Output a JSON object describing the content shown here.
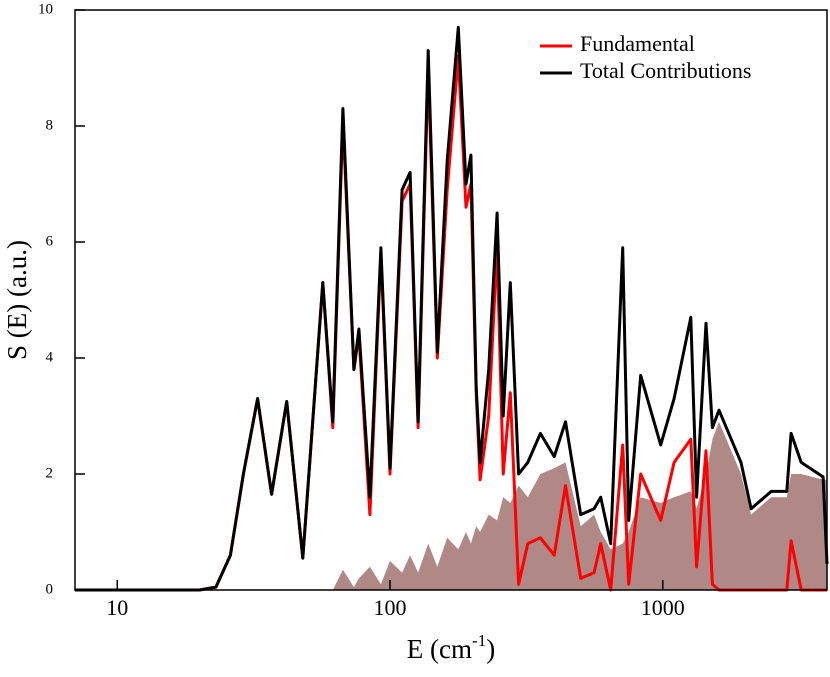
{
  "chart_data": {
    "type": "line",
    "x_label": {
      "text": "E (cm",
      "superscript": "-1",
      "suffix": ")"
    },
    "y_label": "S (E) (a.u.)",
    "x": [
      7,
      15,
      20,
      23,
      26,
      29,
      32.7,
      36.8,
      41.8,
      47.9,
      56.7,
      61.7,
      67.2,
      73.7,
      76.9,
      84.4,
      92.6,
      100,
      110.7,
      118.5,
      126.8,
      138,
      149,
      162,
      178,
      190,
      198,
      207,
      214,
      230,
      247,
      260,
      276,
      296,
      320,
      356,
      400,
      440,
      500,
      560,
      592,
      644,
      713,
      750,
      830,
      983,
      1100,
      1267,
      1330,
      1440,
      1520,
      1607,
      1936,
      2108,
      2497,
      2850,
      2955,
      3216,
      3870,
      4000
    ],
    "series": [
      {
        "color": "#b08886",
        "fill": true,
        "values": [
          0,
          0,
          0,
          0,
          0,
          0,
          0,
          0,
          0,
          0,
          0,
          0,
          0.35,
          0.05,
          0.2,
          0.4,
          0.1,
          0.5,
          0.3,
          0.6,
          0.3,
          0.8,
          0.4,
          0.9,
          0.7,
          1.0,
          0.8,
          1.1,
          1.0,
          1.3,
          1.2,
          1.6,
          1.5,
          1.8,
          1.6,
          2.0,
          2.1,
          2.2,
          1.1,
          1.3,
          1.0,
          0.7,
          0.8,
          1.0,
          1.6,
          1.5,
          1.6,
          1.7,
          1.4,
          2.0,
          2.6,
          2.9,
          2.0,
          1.3,
          1.6,
          1.6,
          2.0,
          2.0,
          1.9,
          1.9
        ]
      },
      {
        "name": "Fundamental",
        "color": "#ff0000",
        "values": [
          0,
          0,
          0,
          0.05,
          0.6,
          2.0,
          3.3,
          1.65,
          3.25,
          0.55,
          5.3,
          2.8,
          8.1,
          3.8,
          4.4,
          1.3,
          5.8,
          2.0,
          6.7,
          7.0,
          2.8,
          9.0,
          4.0,
          6.9,
          9.2,
          6.6,
          7.0,
          3.4,
          1.9,
          3.0,
          5.9,
          2.0,
          3.4,
          0.1,
          0.8,
          0.9,
          0.6,
          1.8,
          0.2,
          0.3,
          0.8,
          0,
          2.5,
          0.1,
          2.0,
          1.2,
          2.2,
          2.6,
          0.4,
          2.4,
          0.1,
          0,
          0,
          0,
          0,
          0,
          0.85,
          0,
          0,
          0
        ]
      },
      {
        "name": "Total Contributions",
        "color": "#000000",
        "values": [
          0,
          0,
          0,
          0.05,
          0.6,
          2.0,
          3.3,
          1.65,
          3.25,
          0.55,
          5.3,
          2.9,
          8.3,
          3.8,
          4.5,
          1.6,
          5.9,
          2.1,
          6.9,
          7.2,
          2.9,
          9.3,
          4.1,
          7.4,
          9.7,
          7.0,
          7.5,
          3.5,
          2.2,
          3.8,
          6.5,
          3.0,
          5.3,
          2.0,
          2.2,
          2.7,
          2.3,
          2.9,
          1.3,
          1.4,
          1.6,
          0.8,
          5.9,
          1.2,
          3.7,
          2.5,
          3.3,
          4.7,
          1.6,
          4.6,
          2.8,
          3.1,
          2.2,
          1.4,
          1.7,
          1.7,
          2.7,
          2.2,
          1.95,
          0.45
        ]
      }
    ],
    "xlim": [
      7,
      4000
    ],
    "xticks": [
      10,
      100,
      1000
    ],
    "log_x": true,
    "ylim": [
      0,
      10
    ],
    "yticks": [
      0,
      2,
      4,
      6,
      8,
      10
    ],
    "legend": "top-right"
  }
}
